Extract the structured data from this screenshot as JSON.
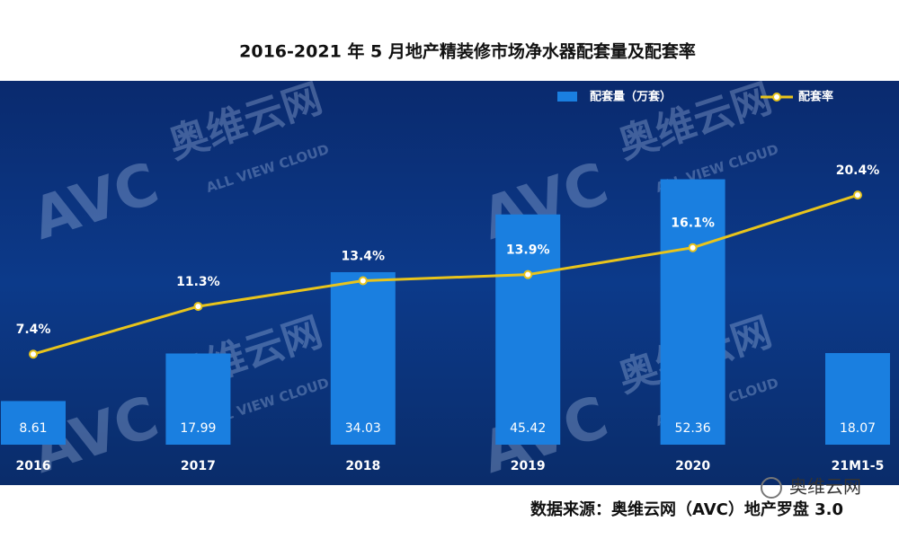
{
  "chart_data": {
    "type": "bar",
    "title": "2016-2021 年 5 月地产精装修市场净水器配套量及配套率",
    "categories": [
      "2016",
      "2017",
      "2018",
      "2019",
      "2020",
      "21M1-5"
    ],
    "series": [
      {
        "name": "配套量（万套）",
        "type": "bar",
        "color": "#1a7fe0",
        "values": [
          8.61,
          17.99,
          34.03,
          45.42,
          52.36,
          18.07
        ]
      },
      {
        "name": "配套率",
        "type": "line",
        "axis": "y2",
        "color": "#e8c41c",
        "values": [
          7.4,
          11.3,
          13.4,
          13.9,
          16.1,
          20.4
        ],
        "value_labels": [
          "7.4%",
          "11.3%",
          "13.4%",
          "13.9%",
          "16.1%",
          "20.4%"
        ]
      }
    ],
    "ylim": [
      0,
      70
    ],
    "y2lim": [
      0,
      29
    ],
    "legend": "top-right",
    "source": "数据来源：奥维云网（AVC）地产罗盘 3.0",
    "watermark": {
      "logo": "AVC",
      "brand": "奥维云网",
      "sub": "ALL VIEW CLOUD"
    }
  }
}
